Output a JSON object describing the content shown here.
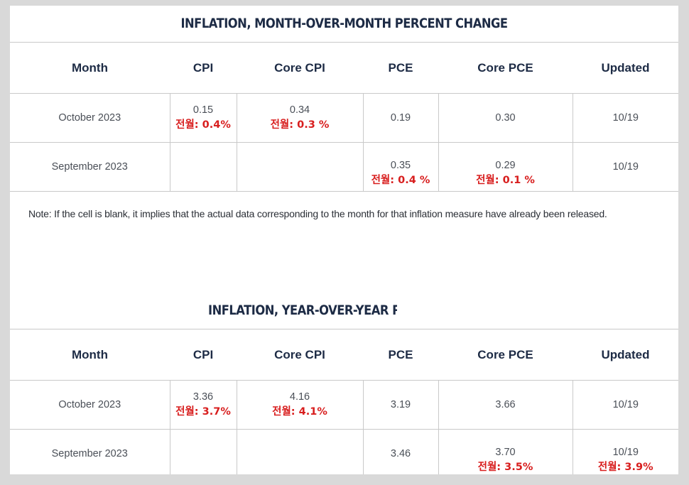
{
  "table1": {
    "title": "INFLATION, MONTH-OVER-MONTH PERCENT CHANGE",
    "headers": [
      "Month",
      "CPI",
      "Core CPI",
      "PCE",
      "Core PCE",
      "Updated"
    ],
    "rows": [
      {
        "month": "October 2023",
        "cpi": "0.15",
        "cpi_prev": "전월: 0.4%",
        "core_cpi": "0.34",
        "core_cpi_prev": "전월: 0.3 %",
        "pce": "0.19",
        "pce_prev": "",
        "core_pce": "0.30",
        "core_pce_prev": "",
        "updated": "10/19",
        "updated_prev": ""
      },
      {
        "month": "September 2023",
        "cpi": "",
        "cpi_prev": "",
        "core_cpi": "",
        "core_cpi_prev": "",
        "pce": "0.35",
        "pce_prev": "전월: 0.4 %",
        "core_pce": "0.29",
        "core_pce_prev": "전월: 0.1 %",
        "updated": "10/19",
        "updated_prev": ""
      }
    ]
  },
  "note": "Note: If the cell is blank, it implies that the actual data corresponding to the month for that inflation measure have already been released.",
  "table2": {
    "title": "INFLATION, YEAR-OVER-YEAR PER",
    "headers": [
      "Month",
      "CPI",
      "Core CPI",
      "PCE",
      "Core PCE",
      "Updated"
    ],
    "rows": [
      {
        "month": "October 2023",
        "cpi": "3.36",
        "cpi_prev": "전월: 3.7%",
        "core_cpi": "4.16",
        "core_cpi_prev": "전월: 4.1%",
        "pce": "3.19",
        "pce_prev": "",
        "core_pce": "3.66",
        "core_pce_prev": "",
        "updated": "10/19",
        "updated_prev": ""
      },
      {
        "month": "September 2023",
        "cpi": "",
        "cpi_prev": "",
        "core_cpi": "",
        "core_cpi_prev": "",
        "pce": "3.46",
        "pce_prev": "",
        "core_pce": "3.70",
        "core_pce_prev": "전월: 3.5%",
        "updated": "10/19",
        "updated_prev": "전월: 3.9%"
      }
    ]
  }
}
